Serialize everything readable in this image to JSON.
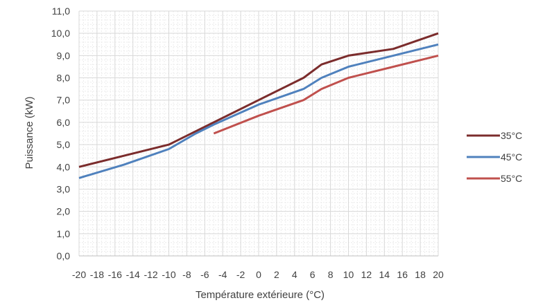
{
  "chart_data": {
    "type": "line",
    "xlabel": "Température extérieure (°C)",
    "ylabel": "Puissance (kW)",
    "xlim": [
      -20,
      20
    ],
    "ylim": [
      0,
      11
    ],
    "x_ticks": [
      -20,
      -18,
      -16,
      -14,
      -12,
      -10,
      -8,
      -6,
      -4,
      -2,
      0,
      2,
      4,
      6,
      8,
      10,
      12,
      14,
      16,
      18,
      20
    ],
    "y_ticks": [
      "0,0",
      "1,0",
      "2,0",
      "3,0",
      "4,0",
      "5,0",
      "6,0",
      "7,0",
      "8,0",
      "9,0",
      "10,0",
      "11,0"
    ],
    "grid": true,
    "legend_position": "right",
    "series": [
      {
        "name": "35°C",
        "color": "#7B2C2C",
        "points": [
          [
            -20,
            4.0
          ],
          [
            -10,
            5.0
          ],
          [
            -5,
            6.0
          ],
          [
            0,
            7.0
          ],
          [
            5,
            8.0
          ],
          [
            7,
            8.6
          ],
          [
            10,
            9.0
          ],
          [
            15,
            9.3
          ],
          [
            20,
            10.0
          ]
        ]
      },
      {
        "name": "45°C",
        "color": "#4F81BD",
        "points": [
          [
            -20,
            3.5
          ],
          [
            -15,
            4.1
          ],
          [
            -10,
            4.8
          ],
          [
            -7,
            5.5
          ],
          [
            -5,
            5.9
          ],
          [
            0,
            6.8
          ],
          [
            5,
            7.5
          ],
          [
            7,
            8.0
          ],
          [
            10,
            8.5
          ],
          [
            15,
            9.0
          ],
          [
            20,
            9.5
          ]
        ]
      },
      {
        "name": "55°C",
        "color": "#C0504D",
        "points": [
          [
            -5,
            5.5
          ],
          [
            0,
            6.3
          ],
          [
            5,
            7.0
          ],
          [
            7,
            7.5
          ],
          [
            10,
            8.0
          ],
          [
            15,
            8.5
          ],
          [
            20,
            9.0
          ]
        ]
      }
    ]
  }
}
